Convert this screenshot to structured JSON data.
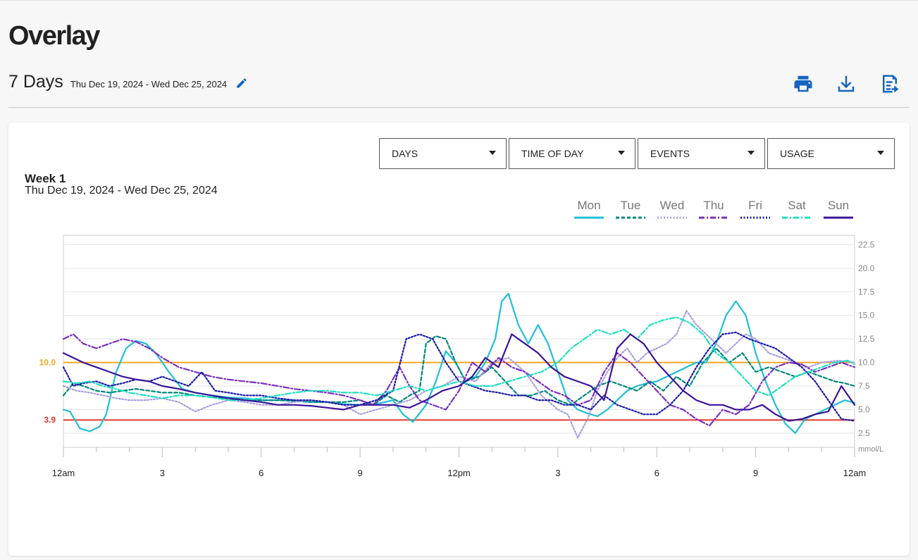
{
  "page": {
    "title": "Overlay"
  },
  "range": {
    "days": "7 Days",
    "dates": "Thu Dec 19, 2024 - Wed Dec 25, 2024"
  },
  "icons": {
    "edit": "pencil-icon",
    "print": "print-icon",
    "download": "download-icon",
    "export": "export-icon"
  },
  "filters": [
    {
      "label": "DAYS"
    },
    {
      "label": "TIME OF DAY"
    },
    {
      "label": "EVENTS"
    },
    {
      "label": "USAGE"
    }
  ],
  "chart_data": {
    "type": "line",
    "title": "Week 1",
    "subtitle": "Thu Dec 19, 2024 - Wed Dec 25, 2024",
    "ylabel": "mmol/L",
    "ylim": [
      1.0,
      23.5
    ],
    "y_ticks": [
      "2.5",
      "5.0",
      "7.5",
      "10.0",
      "12.5",
      "15.0",
      "17.5",
      "20.0",
      "22.5"
    ],
    "x_tick_labels": [
      "12am",
      "3",
      "6",
      "9",
      "12pm",
      "3",
      "6",
      "9",
      "12am"
    ],
    "grid": true,
    "legend_position": "top-right",
    "thresholds": [
      {
        "label": "10.0",
        "value": 10.0,
        "color": "#f5a623"
      },
      {
        "label": "3.9",
        "value": 3.9,
        "color": "#e53935"
      }
    ],
    "series": [
      {
        "name": "Mon",
        "color": "#1ec0d6",
        "style": "solid",
        "x": [
          0,
          0.2,
          0.5,
          0.8,
          1.1,
          1.3,
          1.6,
          1.9,
          2.2,
          2.5,
          2.8,
          3.2,
          3.6,
          4.0,
          4.5,
          5.0,
          5.5,
          6.0,
          6.5,
          7.0,
          7.5,
          8.0,
          8.5,
          9.0,
          9.5,
          10.0,
          10.3,
          10.6,
          11.0,
          11.3,
          11.6,
          11.9,
          12.2,
          12.5,
          12.8,
          13.1,
          13.3,
          13.5,
          13.8,
          14.1,
          14.4,
          14.7,
          15.0,
          15.3,
          15.6,
          15.9,
          16.2,
          16.5,
          16.8,
          17.1,
          17.4,
          17.7,
          18.0,
          18.3,
          18.6,
          18.9,
          19.2,
          19.5,
          19.8,
          20.1,
          20.4,
          20.7,
          21.0,
          21.3,
          21.6,
          21.9,
          22.2,
          22.5,
          22.8,
          23.1,
          23.4,
          23.7,
          24.0
        ],
        "y": [
          5.0,
          4.8,
          3.0,
          2.7,
          3.2,
          4.5,
          9.0,
          11.5,
          12.3,
          12.0,
          11.0,
          9.0,
          7.2,
          6.8,
          6.5,
          6.3,
          6.2,
          6.0,
          6.0,
          6.0,
          5.8,
          5.8,
          5.6,
          5.5,
          5.6,
          6.0,
          4.5,
          3.7,
          5.5,
          8.0,
          11.2,
          10.0,
          8.0,
          8.5,
          10.0,
          12.5,
          16.5,
          17.3,
          14.0,
          12.0,
          14.0,
          12.0,
          9.0,
          6.0,
          5.0,
          4.6,
          4.3,
          5.0,
          6.0,
          7.0,
          7.5,
          7.8,
          8.0,
          8.5,
          9.0,
          9.5,
          10.0,
          10.0,
          12.0,
          15.0,
          16.5,
          15.0,
          11.0,
          8.0,
          5.5,
          3.5,
          2.5,
          4.0,
          4.5,
          5.0,
          5.5,
          6.0,
          5.7
        ]
      },
      {
        "name": "Tue",
        "color": "#00897b",
        "style": "dashed",
        "x": [
          0,
          0.3,
          0.6,
          1.0,
          1.4,
          1.8,
          2.2,
          2.6,
          3.0,
          3.5,
          4.0,
          4.5,
          5.0,
          5.5,
          6.0,
          6.5,
          7.0,
          7.5,
          8.0,
          8.5,
          9.0,
          9.4,
          9.8,
          10.2,
          10.5,
          10.8,
          11.0,
          11.3,
          11.6,
          11.9,
          12.2,
          12.6,
          13.0,
          13.4,
          13.8,
          14.2,
          14.6,
          15.0,
          15.4,
          15.8,
          16.2,
          16.6,
          17.0,
          17.4,
          17.8,
          18.2,
          18.6,
          19.0,
          19.4,
          19.8,
          20.2,
          20.6,
          21.0,
          21.4,
          21.8,
          22.2,
          22.6,
          23.0,
          23.4,
          23.7,
          24.0
        ],
        "y": [
          6.5,
          7.8,
          7.5,
          7.0,
          6.8,
          7.0,
          7.2,
          7.0,
          6.8,
          6.8,
          6.5,
          6.3,
          6.2,
          6.0,
          6.0,
          6.0,
          5.9,
          5.8,
          5.8,
          5.8,
          6.0,
          5.5,
          6.5,
          5.8,
          6.5,
          7.0,
          12.0,
          12.8,
          12.5,
          10.0,
          8.0,
          8.5,
          9.5,
          8.0,
          6.5,
          6.5,
          7.0,
          6.0,
          5.5,
          6.5,
          7.5,
          8.0,
          7.5,
          7.0,
          8.0,
          7.0,
          8.5,
          7.5,
          10.0,
          11.5,
          10.0,
          11.0,
          9.0,
          9.5,
          9.0,
          8.5,
          9.0,
          8.5,
          8.0,
          7.8,
          7.5
        ]
      },
      {
        "name": "Wed",
        "color": "#a8a0e0",
        "style": "dotted",
        "x": [
          0,
          0.4,
          0.8,
          1.2,
          1.6,
          2.0,
          2.5,
          3.0,
          3.5,
          4.0,
          4.5,
          5.0,
          5.5,
          6.0,
          6.5,
          7.0,
          7.5,
          8.0,
          8.5,
          9.0,
          9.5,
          10.0,
          10.5,
          11.0,
          11.5,
          12.0,
          12.5,
          13.0,
          13.5,
          14.0,
          14.5,
          15.0,
          15.3,
          15.6,
          15.9,
          16.2,
          16.5,
          16.8,
          17.1,
          17.4,
          17.7,
          18.0,
          18.3,
          18.6,
          18.9,
          19.2,
          19.5,
          19.8,
          20.1,
          20.4,
          20.7,
          21.0,
          21.4,
          21.8,
          22.2,
          22.6,
          23.0,
          23.5,
          24.0
        ],
        "y": [
          7.5,
          7.0,
          6.8,
          6.5,
          6.2,
          6.0,
          6.0,
          6.2,
          5.8,
          4.8,
          5.5,
          6.0,
          5.8,
          5.5,
          5.5,
          5.8,
          6.0,
          5.8,
          5.5,
          4.5,
          5.0,
          5.5,
          6.0,
          7.0,
          7.5,
          8.5,
          8.0,
          10.0,
          10.5,
          9.0,
          6.5,
          5.0,
          4.5,
          2.0,
          4.0,
          7.0,
          9.0,
          10.5,
          11.5,
          10.0,
          11.0,
          11.5,
          12.0,
          13.0,
          15.5,
          14.0,
          13.0,
          12.0,
          11.0,
          12.0,
          13.0,
          12.5,
          11.0,
          10.5,
          10.0,
          9.5,
          10.0,
          10.2,
          10.0
        ]
      },
      {
        "name": "Thu",
        "color": "#7b2fbf",
        "style": "dashdot",
        "x": [
          0,
          0.3,
          0.6,
          1.0,
          1.4,
          1.8,
          2.2,
          2.6,
          3.0,
          3.5,
          4.0,
          4.5,
          5.0,
          5.5,
          6.0,
          6.5,
          7.0,
          7.5,
          8.0,
          8.5,
          9.0,
          9.4,
          9.8,
          10.2,
          10.5,
          10.8,
          11.2,
          11.6,
          12.0,
          12.4,
          12.8,
          13.2,
          13.6,
          14.0,
          14.4,
          14.8,
          15.2,
          15.6,
          16.0,
          16.4,
          16.8,
          17.2,
          17.6,
          18.0,
          18.4,
          18.8,
          19.2,
          19.6,
          20.0,
          20.4,
          20.8,
          21.2,
          21.6,
          22.0,
          22.4,
          22.8,
          23.2,
          23.6,
          24.0
        ],
        "y": [
          12.5,
          13.0,
          12.0,
          11.5,
          12.0,
          12.5,
          12.2,
          11.5,
          10.5,
          9.5,
          9.0,
          8.5,
          8.2,
          8.0,
          7.8,
          7.5,
          7.2,
          7.0,
          6.8,
          6.5,
          6.0,
          5.5,
          7.0,
          9.5,
          7.5,
          6.0,
          5.5,
          5.0,
          7.0,
          10.0,
          9.0,
          10.5,
          9.5,
          9.0,
          8.0,
          7.0,
          6.5,
          5.5,
          6.0,
          9.0,
          11.0,
          10.0,
          8.5,
          7.0,
          5.5,
          5.0,
          4.0,
          3.3,
          5.0,
          4.5,
          5.5,
          8.0,
          9.5,
          10.0,
          9.8,
          9.0,
          9.5,
          10.0,
          9.5
        ]
      },
      {
        "name": "Fri",
        "color": "#1a1aa8",
        "style": "dotted",
        "x": [
          0,
          0.3,
          0.6,
          1.0,
          1.4,
          1.8,
          2.2,
          2.6,
          3.0,
          3.4,
          3.8,
          4.2,
          4.6,
          5.0,
          5.5,
          6.0,
          6.5,
          7.0,
          7.5,
          8.0,
          8.5,
          9.0,
          9.5,
          10.0,
          10.4,
          10.8,
          11.2,
          11.6,
          12.0,
          12.4,
          12.8,
          13.2,
          13.6,
          14.0,
          14.4,
          14.8,
          15.2,
          15.6,
          16.0,
          16.4,
          16.8,
          17.2,
          17.6,
          18.0,
          18.4,
          18.8,
          19.2,
          19.6,
          20.0,
          20.4,
          20.8,
          21.2,
          21.6,
          22.0,
          22.4,
          22.8,
          23.2,
          23.6,
          24.0
        ],
        "y": [
          9.5,
          7.5,
          7.8,
          8.0,
          7.5,
          7.8,
          8.2,
          8.0,
          8.5,
          8.0,
          7.5,
          9.0,
          7.0,
          6.8,
          6.5,
          6.5,
          6.2,
          6.0,
          6.0,
          5.8,
          5.5,
          5.5,
          6.0,
          7.0,
          12.5,
          13.0,
          12.5,
          10.0,
          8.0,
          7.5,
          7.0,
          6.8,
          6.5,
          6.5,
          6.0,
          6.0,
          5.5,
          5.5,
          5.0,
          6.5,
          5.5,
          5.0,
          4.5,
          4.5,
          5.5,
          7.0,
          9.5,
          11.5,
          13.0,
          13.2,
          12.5,
          12.0,
          11.5,
          10.5,
          9.5,
          8.0,
          6.0,
          4.0,
          3.8
        ]
      },
      {
        "name": "Sat",
        "color": "#1de0c0",
        "style": "dashdot",
        "x": [
          0,
          0.4,
          0.8,
          1.2,
          1.6,
          2.0,
          2.5,
          3.0,
          3.5,
          4.0,
          4.5,
          5.0,
          5.5,
          6.0,
          6.5,
          7.0,
          7.5,
          8.0,
          8.5,
          9.0,
          9.5,
          10.0,
          10.5,
          11.0,
          11.5,
          12.0,
          12.5,
          13.0,
          13.5,
          14.0,
          14.5,
          15.0,
          15.4,
          15.8,
          16.2,
          16.6,
          17.0,
          17.4,
          17.8,
          18.2,
          18.6,
          19.0,
          19.4,
          19.8,
          20.2,
          20.6,
          21.0,
          21.4,
          21.8,
          22.2,
          22.6,
          23.0,
          23.4,
          23.8,
          24.0
        ],
        "y": [
          8.0,
          7.8,
          8.0,
          7.5,
          7.2,
          6.8,
          6.5,
          6.2,
          6.5,
          6.5,
          6.3,
          6.0,
          6.0,
          6.2,
          6.5,
          6.8,
          7.0,
          7.0,
          6.8,
          6.8,
          6.5,
          7.0,
          7.5,
          7.0,
          7.5,
          8.0,
          7.5,
          7.5,
          8.0,
          8.5,
          9.0,
          10.0,
          11.5,
          12.5,
          13.5,
          13.0,
          13.5,
          12.5,
          14.0,
          14.5,
          14.8,
          14.2,
          13.0,
          11.0,
          10.0,
          8.5,
          7.0,
          6.5,
          7.5,
          8.5,
          9.0,
          9.5,
          10.0,
          10.2,
          9.8
        ]
      },
      {
        "name": "Sun",
        "color": "#3a1498",
        "style": "solid",
        "x": [
          0,
          0.3,
          0.6,
          1.0,
          1.4,
          1.8,
          2.2,
          2.6,
          3.0,
          3.5,
          4.0,
          4.5,
          5.0,
          5.5,
          6.0,
          6.5,
          7.0,
          7.5,
          8.0,
          8.5,
          9.0,
          9.5,
          10.0,
          10.5,
          11.0,
          11.5,
          12.0,
          12.4,
          12.8,
          13.2,
          13.6,
          14.0,
          14.4,
          14.8,
          15.2,
          15.6,
          16.0,
          16.4,
          16.8,
          17.2,
          17.6,
          18.0,
          18.4,
          18.8,
          19.2,
          19.6,
          20.0,
          20.4,
          20.8,
          21.2,
          21.6,
          22.0,
          22.4,
          22.8,
          23.2,
          23.6,
          24.0
        ],
        "y": [
          11.0,
          10.5,
          10.0,
          9.5,
          9.0,
          8.5,
          8.2,
          8.0,
          7.5,
          7.2,
          6.8,
          6.5,
          6.2,
          6.0,
          5.8,
          5.5,
          5.5,
          5.4,
          5.2,
          5.0,
          5.5,
          5.5,
          5.5,
          5.2,
          6.0,
          7.0,
          7.5,
          8.5,
          10.5,
          9.5,
          13.0,
          12.0,
          11.0,
          9.5,
          8.5,
          8.0,
          7.5,
          6.0,
          11.5,
          13.0,
          12.0,
          10.0,
          8.5,
          7.0,
          6.0,
          5.5,
          5.5,
          5.0,
          5.0,
          5.5,
          4.5,
          3.8,
          4.0,
          4.5,
          4.8,
          7.5,
          5.5
        ]
      }
    ]
  }
}
